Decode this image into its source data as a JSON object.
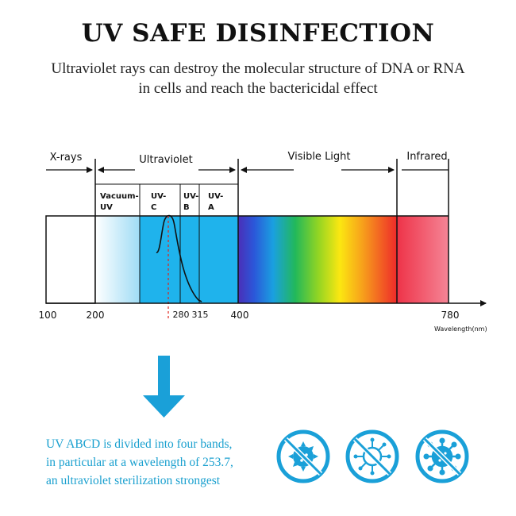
{
  "header": {
    "title": "UV SAFE DISINFECTION",
    "subtitle_line1": "Ultraviolet rays can destroy the molecular structure of DNA or RNA",
    "subtitle_line2": "in cells and reach the bactericidal effect"
  },
  "spectrum": {
    "regions": {
      "xrays": "X-rays",
      "ultraviolet": "Ultraviolet",
      "visible": "Visible Light",
      "infrared": "Infrared"
    },
    "bands": {
      "vacuum_uv_l1": "Vacuum-",
      "vacuum_uv_l2": "UV",
      "uvc_l1": "UV-",
      "uvc_l2": "C",
      "uvb_l1": "UV-",
      "uvb_l2": "B",
      "uva_l1": "UV-",
      "uva_l2": "A"
    },
    "ticks": {
      "t100": "100",
      "t200": "200",
      "t280": "280",
      "t315": "315",
      "t400": "400",
      "t780": "780"
    },
    "axis_label": "Wavelength(nm)",
    "colors": {
      "uv_blue": "#1fb3ec",
      "arrow_blue": "#1aa0d8",
      "peak_line": "#e0241b"
    }
  },
  "description": {
    "line1": "UV ABCD is divided into four bands,",
    "line2": "in particular at a wavelength of 253.7,",
    "line3": "an ultraviolet sterilization strongest"
  },
  "icons": [
    "bacteria-crossed-icon",
    "virus-crossed-icon",
    "coronavirus-crossed-icon"
  ]
}
